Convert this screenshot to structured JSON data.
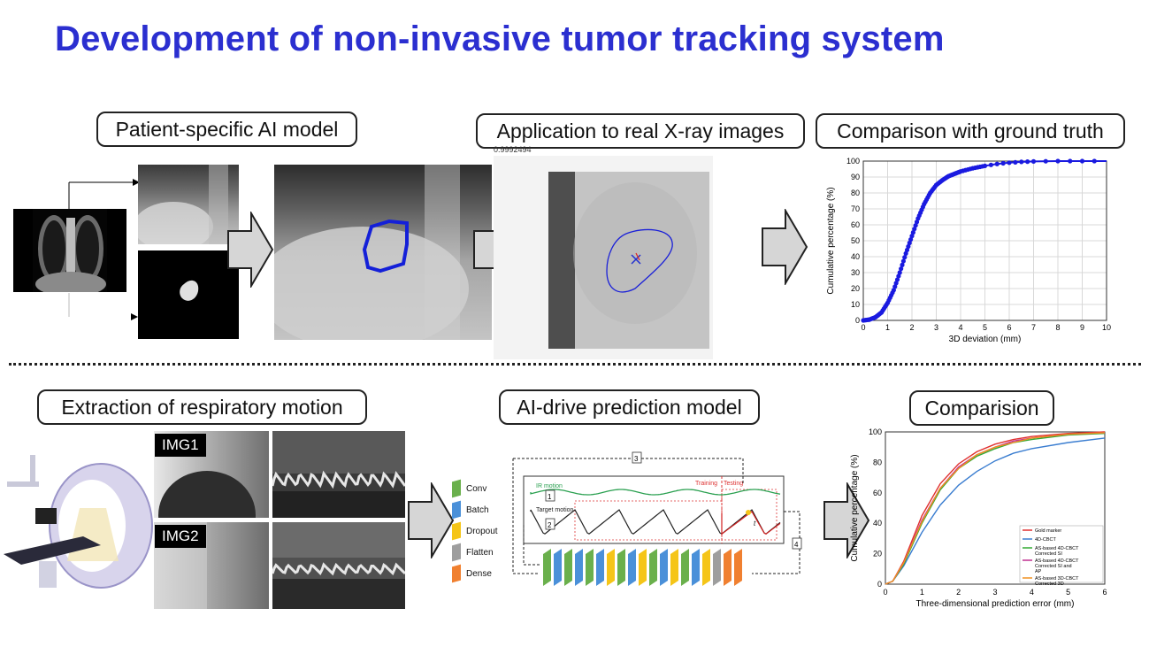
{
  "title": "Development of non-invasive tumor tracking system",
  "top": {
    "box1": "Patient-specific AI model",
    "box2": "Application to real X-ray images",
    "box3": "Comparison with ground truth",
    "score": "0.9992494"
  },
  "bottom": {
    "box1": "Extraction of respiratory motion",
    "box2": "AI-drive prediction model",
    "box3": "Comparision",
    "img1": "IMG1",
    "img2": "IMG2",
    "model": {
      "layers": [
        "Conv",
        "Batch",
        "Dropout",
        "Flatten",
        "Dense"
      ],
      "layer_colors": [
        "#6ab04c",
        "#4a90d9",
        "#f5c518",
        "#9e9e9e",
        "#f08030"
      ],
      "ir_motion": "IR motion",
      "target_motion": "Target motion",
      "training": "Training",
      "testing": "Testing",
      "t": "t",
      "steps": [
        "1",
        "2",
        "3",
        "4"
      ]
    }
  },
  "chart_data": [
    {
      "type": "scatter",
      "title": "",
      "xlabel": "3D deviation (mm)",
      "ylabel": "Cumulative percentage (%)",
      "xlim": [
        0,
        10
      ],
      "ylim": [
        0,
        100
      ],
      "xticks": [
        "0",
        "1",
        "2",
        "3",
        "4",
        "5",
        "6",
        "7",
        "8",
        "9",
        "10"
      ],
      "yticks": [
        "0",
        "10",
        "20",
        "30",
        "40",
        "50",
        "60",
        "70",
        "80",
        "90",
        "100"
      ],
      "grid": true,
      "series": [
        {
          "color": "#1a1ae0",
          "x": [
            0,
            0.25,
            0.5,
            0.75,
            1.0,
            1.25,
            1.5,
            1.75,
            2.0,
            2.25,
            2.5,
            2.75,
            3.0,
            3.25,
            3.5,
            3.75,
            4.0,
            4.5,
            5.0,
            5.5,
            6.0,
            6.5,
            7.0,
            8.0,
            9.0,
            10.0
          ],
          "y": [
            0,
            0.5,
            2,
            5,
            11,
            19,
            30,
            42,
            53,
            64,
            73,
            80,
            85,
            88,
            90.5,
            92,
            93.5,
            95.5,
            97,
            98.2,
            99,
            99.5,
            99.8,
            100,
            100,
            100
          ]
        }
      ]
    },
    {
      "type": "line",
      "title": "",
      "xlabel": "Three-dimensional prediction error (mm)",
      "ylabel": "Cumulative percentage (%)",
      "xlim": [
        0,
        6
      ],
      "ylim": [
        0,
        100
      ],
      "xticks": [
        "0",
        "1",
        "2",
        "3",
        "4",
        "5",
        "6"
      ],
      "yticks": [
        "0",
        "20",
        "40",
        "60",
        "80",
        "100"
      ],
      "grid": false,
      "legend_position": "lower-right",
      "series": [
        {
          "name": "Gold marker",
          "color": "#e03030",
          "x": [
            0,
            0.2,
            0.5,
            1,
            1.5,
            2,
            2.5,
            3,
            3.5,
            4,
            5,
            6
          ],
          "y": [
            0,
            2,
            15,
            45,
            66,
            79,
            87,
            92,
            95,
            97,
            99,
            100
          ]
        },
        {
          "name": "4D-CBCT",
          "color": "#3a7dd0",
          "x": [
            0,
            0.2,
            0.5,
            1,
            1.5,
            2,
            2.5,
            3,
            3.5,
            4,
            5,
            6
          ],
          "y": [
            0,
            2,
            12,
            34,
            52,
            65,
            74,
            81,
            86,
            89,
            93,
            96
          ]
        },
        {
          "name": "AS-based 4D-CBCT Corrected SI",
          "color": "#33aa33",
          "x": [
            0,
            0.2,
            0.5,
            1,
            1.5,
            2,
            2.5,
            3,
            3.5,
            4,
            5,
            6
          ],
          "y": [
            0,
            2,
            13,
            40,
            62,
            76,
            84,
            89,
            93,
            95,
            98,
            99
          ]
        },
        {
          "name": "AS-based 4D-CBCT Corrected SI and AP",
          "color": "#c03090",
          "x": [
            0,
            0.2,
            0.5,
            1,
            1.5,
            2,
            2.5,
            3,
            3.5,
            4,
            5,
            6
          ],
          "y": [
            0,
            2,
            14,
            42,
            63,
            77,
            85,
            90,
            94,
            96,
            98.5,
            99.5
          ]
        },
        {
          "name": "AS-based 3D-CBCT Corrected 3D",
          "color": "#f09020",
          "x": [
            0,
            0.2,
            0.5,
            1,
            1.5,
            2,
            2.5,
            3,
            3.5,
            4,
            5,
            6
          ],
          "y": [
            0,
            2,
            14,
            41,
            63,
            76,
            85,
            90,
            93,
            96,
            98.5,
            99.5
          ]
        }
      ]
    }
  ]
}
